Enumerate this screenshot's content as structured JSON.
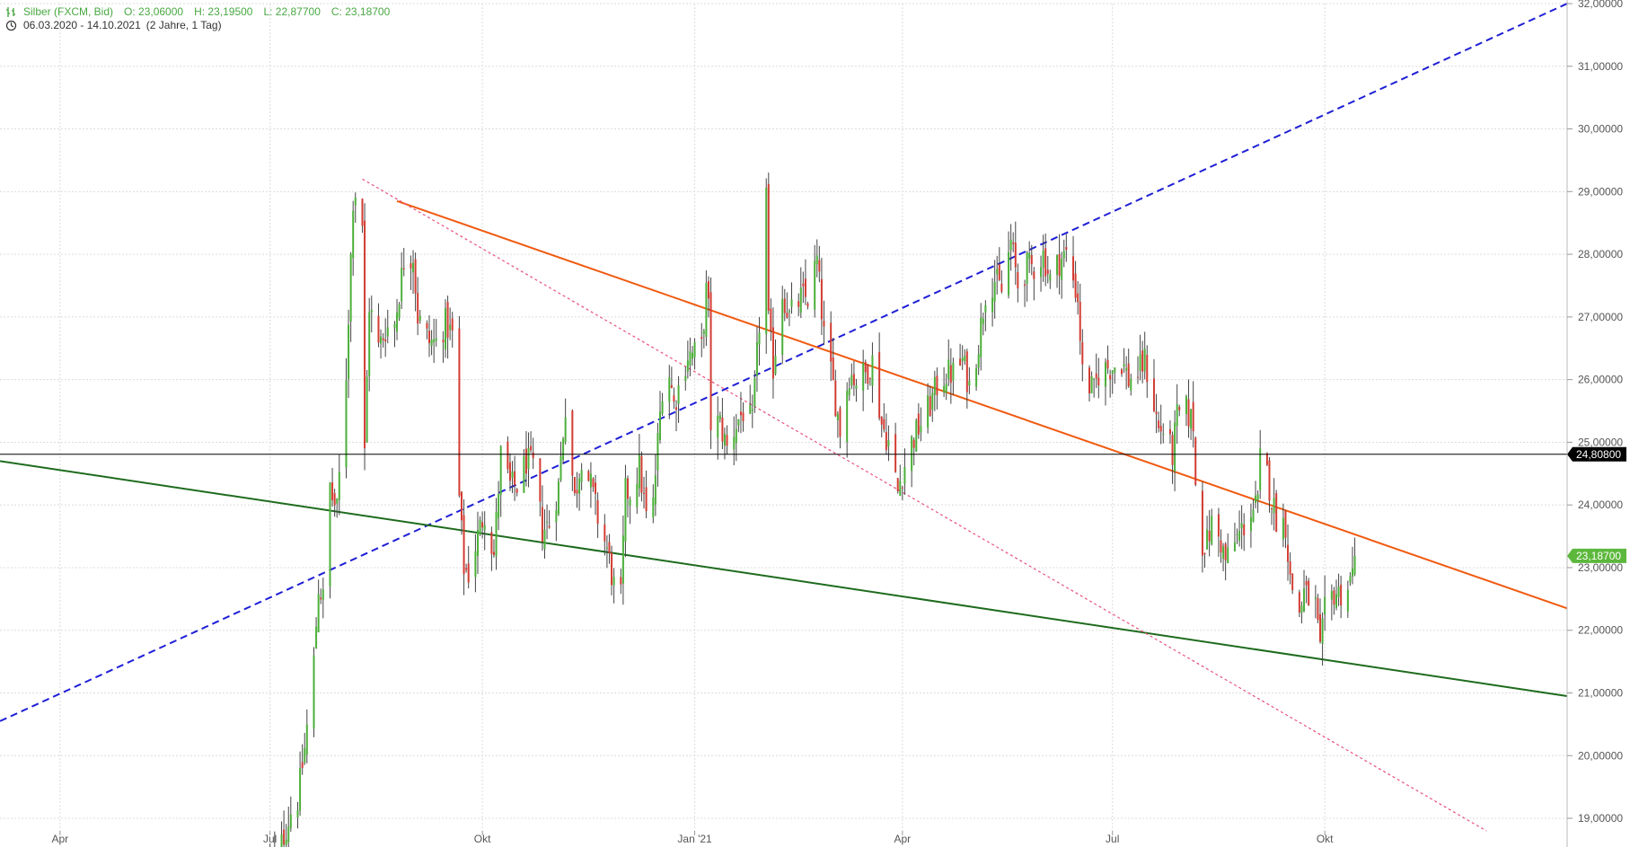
{
  "header": {
    "instrument": "Silber (FXCM, Bid)",
    "open": "O: 23,06000",
    "high": "H: 23,19500",
    "low": "L: 22,87700",
    "close": "C: 23,18700",
    "range": "06.03.2020 - 14.10.2021",
    "period": "(2 Jahre, 1 Tag)",
    "instrument_icon": "bars-icon",
    "range_icon": "clock-icon"
  },
  "colors": {
    "up": "#4caf3a",
    "down": "#d23c32",
    "wick": "#444444",
    "grid": "#dcdcdc",
    "axis_text": "#555555",
    "hline": "#000000",
    "trend_blue": "#1f1fd6",
    "trend_orange": "#f05a10",
    "trend_green": "#1e6b1e",
    "trend_pink": "#e8507a",
    "last_price_bg": "#5cb83c"
  },
  "chart_data": {
    "type": "candlestick",
    "ylim": [
      18.8,
      32.0
    ],
    "xlim": [
      "2020-03-06",
      "2022-01-14"
    ],
    "yticks": [
      {
        "value": 19,
        "label": "19,00000"
      },
      {
        "value": 20,
        "label": "20,00000"
      },
      {
        "value": 21,
        "label": "21,00000"
      },
      {
        "value": 22,
        "label": "22,00000"
      },
      {
        "value": 23,
        "label": "23,00000"
      },
      {
        "value": 24,
        "label": "24,00000"
      },
      {
        "value": 25,
        "label": "25,00000"
      },
      {
        "value": 26,
        "label": "26,00000"
      },
      {
        "value": 27,
        "label": "27,00000"
      },
      {
        "value": 28,
        "label": "28,00000"
      },
      {
        "value": 29,
        "label": "29,00000"
      },
      {
        "value": 30,
        "label": "30,00000"
      },
      {
        "value": 31,
        "label": "31,00000"
      },
      {
        "value": 32,
        "label": "32,00000"
      }
    ],
    "xticks": [
      {
        "date": "2020-04-01",
        "label": "Apr"
      },
      {
        "date": "2020-07-01",
        "label": "Jul"
      },
      {
        "date": "2020-10-01",
        "label": "Okt"
      },
      {
        "date": "2021-01-01",
        "label": "Jan '21"
      },
      {
        "date": "2021-04-01",
        "label": "Apr"
      },
      {
        "date": "2021-07-01",
        "label": "Jul"
      },
      {
        "date": "2021-10-01",
        "label": "Okt"
      }
    ],
    "price_path": [
      [
        "2020-07-01",
        18.3
      ],
      [
        "2020-07-06",
        18.6
      ],
      [
        "2020-07-10",
        19.1
      ],
      [
        "2020-07-13",
        19.3
      ],
      [
        "2020-07-16",
        20.1
      ],
      [
        "2020-07-20",
        21.5
      ],
      [
        "2020-07-22",
        22.7
      ],
      [
        "2020-07-24",
        22.5
      ],
      [
        "2020-07-27",
        24.3
      ],
      [
        "2020-07-28",
        24.1
      ],
      [
        "2020-07-30",
        23.9
      ],
      [
        "2020-08-03",
        26.1
      ],
      [
        "2020-08-06",
        28.9
      ],
      [
        "2020-08-07",
        29.0
      ],
      [
        "2020-08-10",
        28.5
      ],
      [
        "2020-08-11",
        24.8
      ],
      [
        "2020-08-13",
        27.2
      ],
      [
        "2020-08-17",
        26.5
      ],
      [
        "2020-08-20",
        26.8
      ],
      [
        "2020-08-24",
        26.9
      ],
      [
        "2020-08-26",
        27.4
      ],
      [
        "2020-08-28",
        27.9
      ],
      [
        "2020-09-01",
        28.0
      ],
      [
        "2020-09-03",
        27.0
      ],
      [
        "2020-09-08",
        26.6
      ],
      [
        "2020-09-11",
        26.6
      ],
      [
        "2020-09-15",
        26.9
      ],
      [
        "2020-09-18",
        26.7
      ],
      [
        "2020-09-21",
        24.1
      ],
      [
        "2020-09-23",
        23.0
      ],
      [
        "2020-09-25",
        22.9
      ],
      [
        "2020-09-29",
        23.5
      ],
      [
        "2020-10-02",
        23.9
      ],
      [
        "2020-10-06",
        23.2
      ],
      [
        "2020-10-09",
        24.8
      ],
      [
        "2020-10-13",
        24.3
      ],
      [
        "2020-10-16",
        24.3
      ],
      [
        "2020-10-20",
        24.7
      ],
      [
        "2020-10-23",
        24.6
      ],
      [
        "2020-10-27",
        23.6
      ],
      [
        "2020-10-30",
        23.7
      ],
      [
        "2020-11-03",
        24.3
      ],
      [
        "2020-11-06",
        25.6
      ],
      [
        "2020-11-10",
        24.1
      ],
      [
        "2020-11-13",
        24.8
      ],
      [
        "2020-11-17",
        24.3
      ],
      [
        "2020-11-20",
        23.8
      ],
      [
        "2020-11-24",
        23.3
      ],
      [
        "2020-11-27",
        22.7
      ],
      [
        "2020-11-30",
        22.5
      ],
      [
        "2020-12-02",
        24.2
      ],
      [
        "2020-12-04",
        24.2
      ],
      [
        "2020-12-08",
        24.6
      ],
      [
        "2020-12-11",
        23.8
      ],
      [
        "2020-12-14",
        24.0
      ],
      [
        "2020-12-16",
        25.0
      ],
      [
        "2020-12-18",
        25.9
      ],
      [
        "2020-12-21",
        26.1
      ],
      [
        "2020-12-23",
        25.6
      ],
      [
        "2020-12-29",
        26.4
      ],
      [
        "2020-12-31",
        26.4
      ],
      [
        "2021-01-04",
        26.5
      ],
      [
        "2021-01-06",
        27.4
      ],
      [
        "2021-01-07",
        27.1
      ],
      [
        "2021-01-08",
        25.3
      ],
      [
        "2021-01-12",
        25.3
      ],
      [
        "2021-01-15",
        24.9
      ],
      [
        "2021-01-19",
        25.3
      ],
      [
        "2021-01-22",
        25.5
      ],
      [
        "2021-01-26",
        25.3
      ],
      [
        "2021-01-29",
        26.9
      ],
      [
        "2021-02-01",
        29.0
      ],
      [
        "2021-02-02",
        26.9
      ],
      [
        "2021-02-04",
        26.2
      ],
      [
        "2021-02-08",
        27.4
      ],
      [
        "2021-02-11",
        27.0
      ],
      [
        "2021-02-16",
        27.3
      ],
      [
        "2021-02-19",
        27.3
      ],
      [
        "2021-02-23",
        27.9
      ],
      [
        "2021-02-26",
        26.7
      ],
      [
        "2021-03-02",
        25.9
      ],
      [
        "2021-03-05",
        25.2
      ],
      [
        "2021-03-09",
        26.1
      ],
      [
        "2021-03-12",
        26.0
      ],
      [
        "2021-03-16",
        26.1
      ],
      [
        "2021-03-19",
        26.3
      ],
      [
        "2021-03-23",
        25.3
      ],
      [
        "2021-03-26",
        25.0
      ],
      [
        "2021-03-30",
        24.2
      ],
      [
        "2021-03-31",
        24.4
      ],
      [
        "2021-04-05",
        25.0
      ],
      [
        "2021-04-09",
        25.3
      ],
      [
        "2021-04-13",
        25.6
      ],
      [
        "2021-04-16",
        25.9
      ],
      [
        "2021-04-20",
        26.1
      ],
      [
        "2021-04-23",
        26.1
      ],
      [
        "2021-04-27",
        26.3
      ],
      [
        "2021-04-30",
        25.9
      ],
      [
        "2021-05-04",
        26.6
      ],
      [
        "2021-05-07",
        27.4
      ],
      [
        "2021-05-11",
        27.6
      ],
      [
        "2021-05-14",
        27.4
      ],
      [
        "2021-05-18",
        28.2
      ],
      [
        "2021-05-21",
        27.5
      ],
      [
        "2021-05-25",
        27.8
      ],
      [
        "2021-05-28",
        27.8
      ],
      [
        "2021-06-01",
        28.0
      ],
      [
        "2021-06-04",
        27.6
      ],
      [
        "2021-06-08",
        27.9
      ],
      [
        "2021-06-11",
        28.0
      ],
      [
        "2021-06-14",
        27.6
      ],
      [
        "2021-06-16",
        27.3
      ],
      [
        "2021-06-18",
        26.1
      ],
      [
        "2021-06-21",
        25.9
      ],
      [
        "2021-06-23",
        25.8
      ],
      [
        "2021-06-25",
        26.1
      ],
      [
        "2021-06-29",
        26.2
      ],
      [
        "2021-07-01",
        26.2
      ],
      [
        "2021-07-05",
        26.3
      ],
      [
        "2021-07-08",
        26.0
      ],
      [
        "2021-07-12",
        26.1
      ],
      [
        "2021-07-15",
        26.3
      ],
      [
        "2021-07-19",
        25.6
      ],
      [
        "2021-07-21",
        25.2
      ],
      [
        "2021-07-23",
        25.2
      ],
      [
        "2021-07-27",
        24.8
      ],
      [
        "2021-07-29",
        25.4
      ],
      [
        "2021-08-02",
        25.5
      ],
      [
        "2021-08-05",
        25.3
      ],
      [
        "2021-08-06",
        24.3
      ],
      [
        "2021-08-09",
        23.4
      ],
      [
        "2021-08-11",
        23.4
      ],
      [
        "2021-08-13",
        23.7
      ],
      [
        "2021-08-17",
        23.4
      ],
      [
        "2021-08-19",
        23.1
      ],
      [
        "2021-08-23",
        23.4
      ],
      [
        "2021-08-26",
        23.6
      ],
      [
        "2021-08-30",
        23.9
      ],
      [
        "2021-09-02",
        24.0
      ],
      [
        "2021-09-03",
        24.7
      ],
      [
        "2021-09-06",
        24.5
      ],
      [
        "2021-09-08",
        24.1
      ],
      [
        "2021-09-10",
        23.8
      ],
      [
        "2021-09-14",
        23.7
      ],
      [
        "2021-09-16",
        22.8
      ],
      [
        "2021-09-20",
        22.3
      ],
      [
        "2021-09-22",
        22.6
      ],
      [
        "2021-09-24",
        22.5
      ],
      [
        "2021-09-27",
        22.4
      ],
      [
        "2021-09-29",
        21.6
      ],
      [
        "2021-10-01",
        22.3
      ],
      [
        "2021-10-05",
        22.6
      ],
      [
        "2021-10-08",
        22.6
      ],
      [
        "2021-10-11",
        22.7
      ],
      [
        "2021-10-13",
        22.9
      ],
      [
        "2021-10-14",
        23.187
      ]
    ],
    "horizontal_line": {
      "value": 24.808,
      "label": "24,80800"
    },
    "last_price": {
      "value": 23.187,
      "label": "23,18700"
    },
    "trendlines": [
      {
        "name": "blue-dashed",
        "style": "dashed",
        "color_key": "trend_blue",
        "points": [
          [
            "2020-03-06",
            20.55
          ],
          [
            "2022-01-14",
            32.0
          ]
        ]
      },
      {
        "name": "orange",
        "style": "solid",
        "color_key": "trend_orange",
        "points": [
          [
            "2020-08-25",
            28.85
          ],
          [
            "2022-01-14",
            22.35
          ]
        ]
      },
      {
        "name": "green",
        "style": "solid",
        "color_key": "trend_green",
        "points": [
          [
            "2020-03-06",
            24.7
          ],
          [
            "2022-01-14",
            20.95
          ]
        ]
      },
      {
        "name": "pink-dotted",
        "style": "dotted",
        "color_key": "trend_pink",
        "points": [
          [
            "2020-08-10",
            29.2
          ],
          [
            "2021-12-10",
            18.8
          ]
        ]
      }
    ]
  }
}
